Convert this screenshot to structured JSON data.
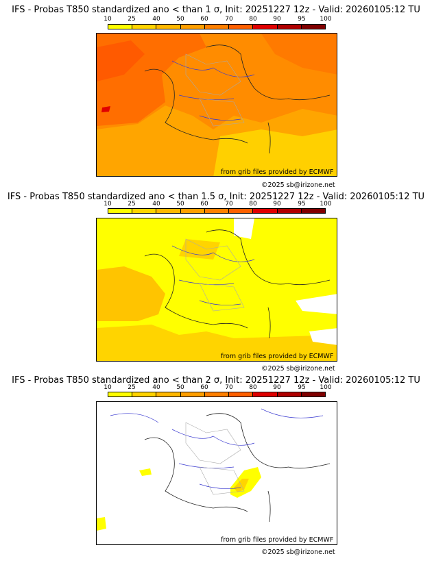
{
  "colorbar": {
    "labels": [
      "10",
      "25",
      "40",
      "50",
      "60",
      "70",
      "80",
      "90",
      "95",
      "100"
    ],
    "colors": [
      "#ffff00",
      "#ffd400",
      "#ffb800",
      "#ff9f00",
      "#ff8000",
      "#ff6000",
      "#e00000",
      "#b00000",
      "#800000",
      "#500000"
    ]
  },
  "panels": [
    {
      "title": "IFS - Probas T850  standardized ano < than 1 σ, Init: 20251227 12z - Valid: 20260105:12 TU",
      "credit": "from grib files provided by ECMWF",
      "copyright": "©2025 sb@irizone.net"
    },
    {
      "title": "IFS - Probas T850  standardized ano < than 1.5 σ, Init: 20251227 12z - Valid: 20260105:12 TU",
      "credit": "from grib files provided by ECMWF",
      "copyright": "©2025 sb@irizone.net"
    },
    {
      "title": "IFS - Probas T850  standardized ano < than 2 σ, Init: 20251227 12z - Valid: 20260105:12 TU",
      "credit": "from grib files provided by ECMWF",
      "copyright": "©2025 sb@irizone.net"
    }
  ]
}
